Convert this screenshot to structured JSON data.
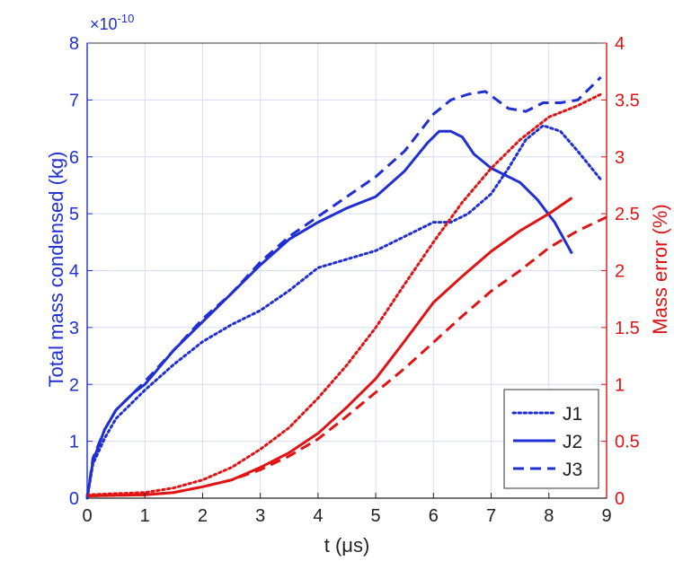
{
  "chart_data": {
    "type": "line",
    "xlabel": "t (μs)",
    "ylabel_left": "Total mass condensed (kg)",
    "ylabel_right": "Mass error (%)",
    "left_multiplier": "×10",
    "left_multiplier_exp": "-10",
    "xlim": [
      0,
      9
    ],
    "ylim_left": [
      0,
      8
    ],
    "ylim_right": [
      0,
      4
    ],
    "xticks": [
      "0",
      "1",
      "2",
      "3",
      "4",
      "5",
      "6",
      "7",
      "8",
      "9"
    ],
    "yticks_left": [
      "0",
      "1",
      "2",
      "3",
      "4",
      "5",
      "6",
      "7",
      "8"
    ],
    "yticks_right": [
      "0",
      "0.5",
      "1",
      "1.5",
      "2",
      "2.5",
      "3",
      "3.5",
      "4"
    ],
    "grid": true,
    "legend": {
      "position": "bottom-right",
      "entries": [
        "J1",
        "J2",
        "J3"
      ]
    },
    "colors": {
      "left": "#1f2fd4",
      "right": "#e01414",
      "grid": "#d8dcf0"
    },
    "series": [
      {
        "name": "J1",
        "axis": "left",
        "dash": "dotted",
        "x": [
          0,
          0.1,
          0.3,
          0.5,
          0.8,
          1,
          1.5,
          2,
          2.5,
          3,
          3.5,
          4,
          4.5,
          5,
          5.5,
          6,
          6.3,
          6.6,
          7,
          7.3,
          7.6,
          7.9,
          8.2,
          8.5,
          8.9
        ],
        "y": [
          0,
          0.6,
          1.05,
          1.4,
          1.7,
          1.9,
          2.35,
          2.75,
          3.05,
          3.3,
          3.65,
          4.05,
          4.2,
          4.35,
          4.6,
          4.85,
          4.85,
          5.0,
          5.35,
          5.8,
          6.3,
          6.55,
          6.45,
          6.1,
          5.6
        ]
      },
      {
        "name": "J2",
        "axis": "left",
        "dash": "solid",
        "x": [
          0,
          0.1,
          0.3,
          0.5,
          0.8,
          1,
          1.5,
          2,
          2.5,
          3,
          3.5,
          4,
          4.5,
          5,
          5.5,
          5.9,
          6.1,
          6.3,
          6.5,
          6.7,
          7,
          7.5,
          7.8,
          8.1,
          8.4
        ],
        "y": [
          0,
          0.65,
          1.2,
          1.55,
          1.85,
          2.0,
          2.6,
          3.1,
          3.6,
          4.1,
          4.55,
          4.85,
          5.1,
          5.3,
          5.75,
          6.25,
          6.45,
          6.45,
          6.35,
          6.05,
          5.8,
          5.55,
          5.25,
          4.85,
          4.3
        ]
      },
      {
        "name": "J3",
        "axis": "left",
        "dash": "dashed",
        "x": [
          0,
          0.1,
          0.3,
          0.5,
          0.8,
          1,
          1.5,
          2,
          2.5,
          3,
          3.5,
          4,
          4.5,
          5,
          5.5,
          6,
          6.3,
          6.6,
          6.9,
          7.1,
          7.3,
          7.6,
          7.9,
          8.2,
          8.5,
          8.9
        ],
        "y": [
          0,
          0.7,
          1.2,
          1.55,
          1.85,
          2.05,
          2.6,
          3.15,
          3.6,
          4.15,
          4.6,
          4.95,
          5.3,
          5.65,
          6.1,
          6.75,
          7.0,
          7.1,
          7.15,
          7.0,
          6.85,
          6.8,
          6.95,
          6.95,
          7.0,
          7.4
        ]
      },
      {
        "name": "J1",
        "axis": "right",
        "dash": "dotted",
        "x": [
          0,
          1,
          1.5,
          2,
          2.5,
          3,
          3.5,
          4,
          4.5,
          5,
          5.5,
          6,
          6.5,
          7,
          7.5,
          8,
          8.5,
          8.9
        ],
        "y": [
          0.03,
          0.05,
          0.09,
          0.16,
          0.27,
          0.43,
          0.62,
          0.88,
          1.17,
          1.5,
          1.88,
          2.25,
          2.6,
          2.9,
          3.15,
          3.35,
          3.45,
          3.55
        ]
      },
      {
        "name": "J2",
        "axis": "right",
        "dash": "solid",
        "x": [
          0,
          1,
          1.5,
          2,
          2.5,
          3,
          3.5,
          4,
          4.5,
          5,
          5.5,
          6,
          6.5,
          7,
          7.5,
          8,
          8.4
        ],
        "y": [
          0.02,
          0.03,
          0.05,
          0.1,
          0.16,
          0.27,
          0.4,
          0.57,
          0.8,
          1.05,
          1.38,
          1.72,
          1.95,
          2.17,
          2.35,
          2.5,
          2.64
        ]
      },
      {
        "name": "J3",
        "axis": "right",
        "dash": "dashed",
        "x": [
          0,
          1,
          1.5,
          2,
          2.5,
          3,
          3.5,
          4,
          4.5,
          5,
          5.5,
          6,
          6.5,
          7,
          7.5,
          8,
          8.5,
          9
        ],
        "y": [
          0.02,
          0.03,
          0.05,
          0.1,
          0.16,
          0.25,
          0.37,
          0.52,
          0.72,
          0.93,
          1.14,
          1.37,
          1.6,
          1.82,
          2.0,
          2.2,
          2.35,
          2.47
        ]
      }
    ]
  }
}
